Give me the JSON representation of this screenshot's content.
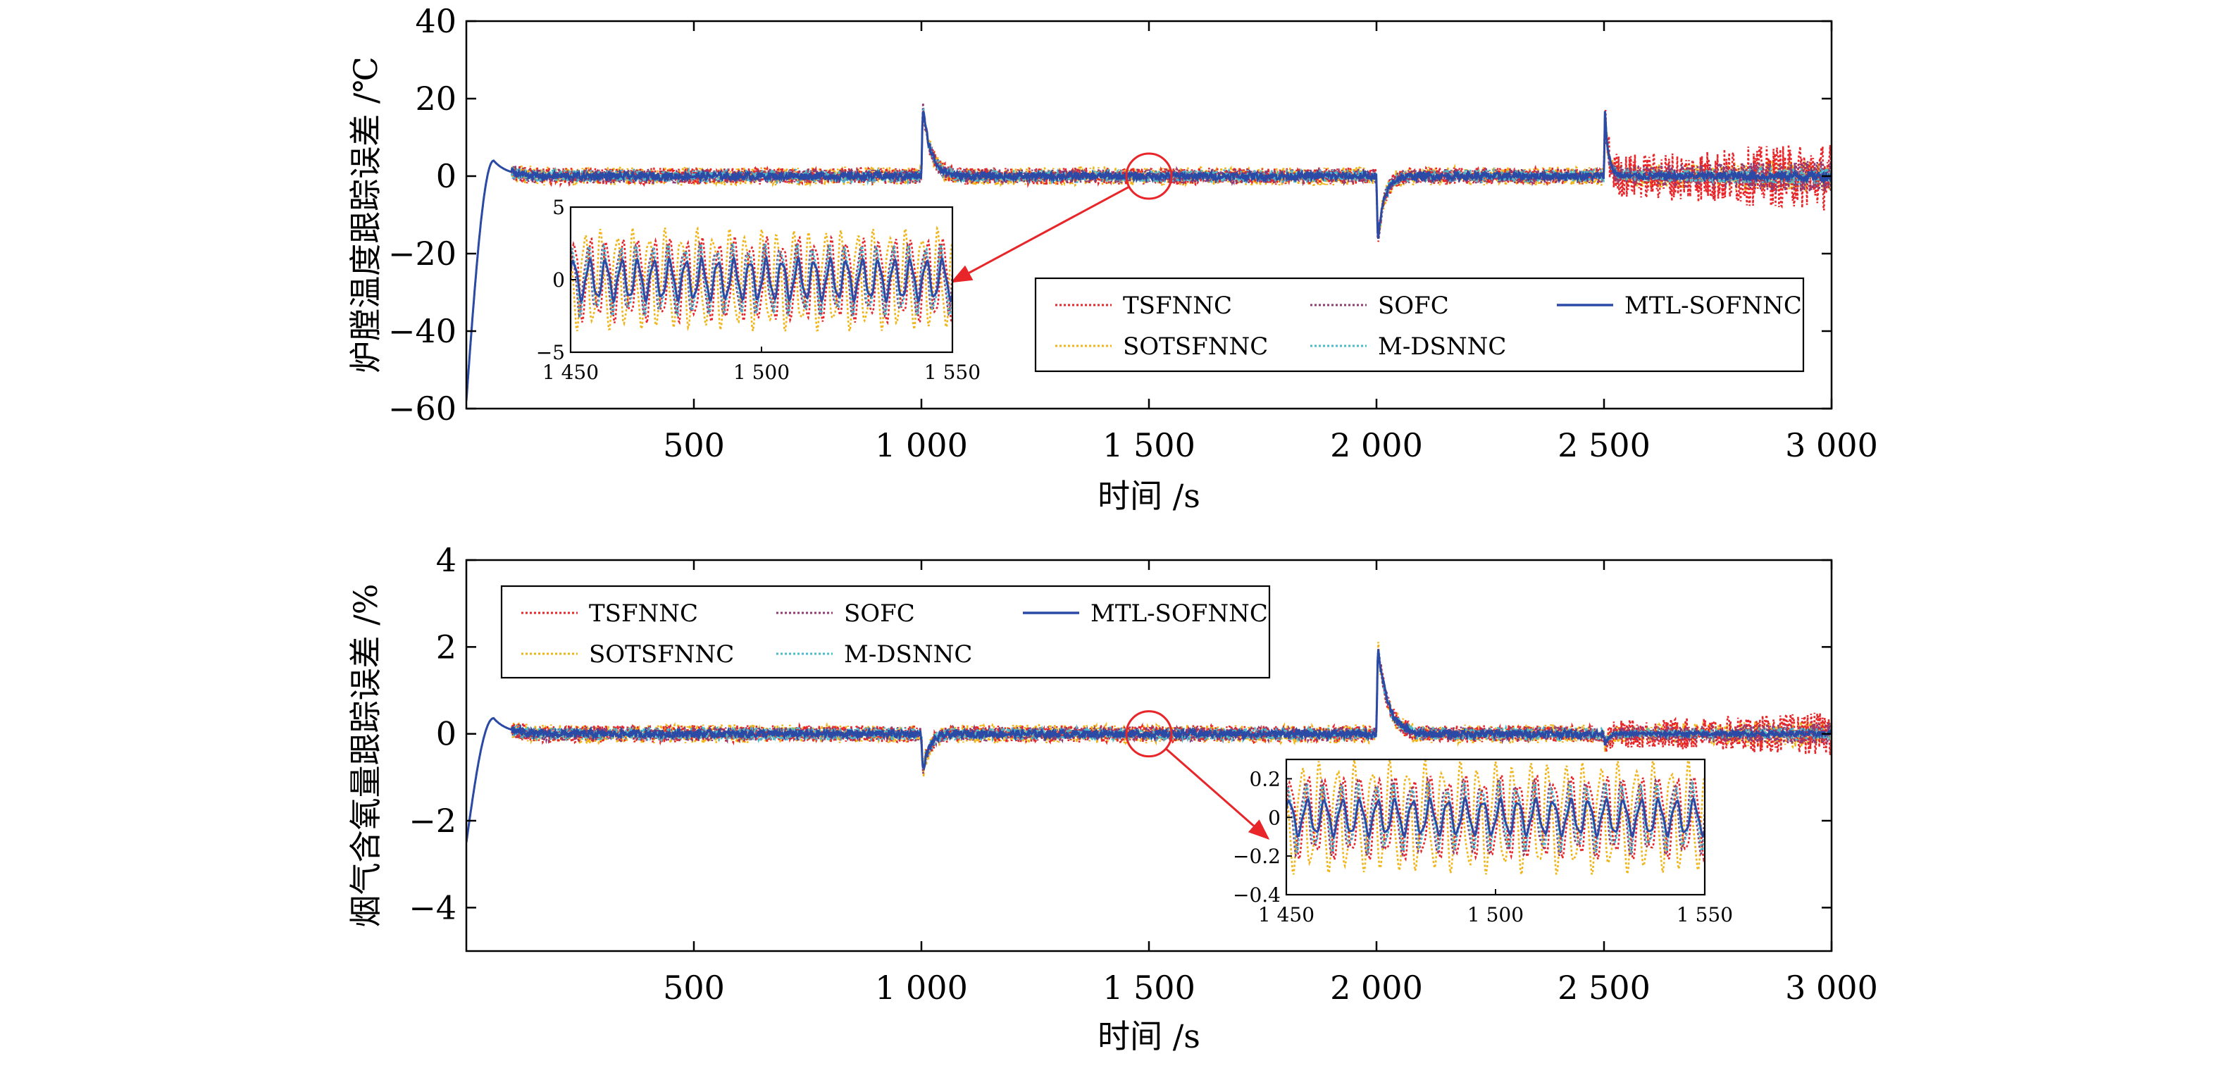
{
  "chart_data": [
    {
      "type": "line",
      "ylabel": "炉膛温度跟踪误差 /℃",
      "xlabel": "时间 /s",
      "xlim": [
        0,
        3000
      ],
      "ylim": [
        -60,
        40
      ],
      "x_ticks": [
        500,
        1000,
        1500,
        2000,
        2500,
        3000
      ],
      "x_tick_labels": [
        "500",
        "1 000",
        "1 500",
        "2 000",
        "2 500",
        "3 000"
      ],
      "y_ticks": [
        -60,
        -40,
        -20,
        0,
        20,
        40
      ],
      "y_tick_labels": [
        "−60",
        "−40",
        "−20",
        "0",
        "20",
        "40"
      ],
      "legend_position": "lower-right",
      "series": [
        {
          "name": "TSFNNC",
          "color": "#e8262a",
          "style": "dotted",
          "noise_end": 9
        },
        {
          "name": "SOFC",
          "color": "#8e3a73",
          "style": "dotted",
          "noise_end": 5
        },
        {
          "name": "MTL-SOFNNC",
          "color": "#2a4aa6",
          "style": "solid",
          "noise_end": 3
        },
        {
          "name": "SOTSFNNC",
          "color": "#f0b416",
          "style": "dotted",
          "noise_end": 4
        },
        {
          "name": "M-DSNNC",
          "color": "#49b9cc",
          "style": "dotted",
          "noise_end": 3
        }
      ],
      "events": [
        {
          "x": 0,
          "value": -58
        },
        {
          "x": 1000,
          "value": 21
        },
        {
          "x": 2000,
          "value": -21
        },
        {
          "x": 2500,
          "value": 21
        }
      ],
      "highlight": {
        "x": 1500,
        "y": 0
      },
      "inset": {
        "xlim": [
          1450,
          1550
        ],
        "ylim": [
          -5,
          5
        ],
        "x_ticks": [
          1450,
          1500,
          1550
        ],
        "x_tick_labels": [
          "1 450",
          "1 500",
          "1 550"
        ],
        "y_ticks": [
          -5,
          0,
          5
        ],
        "y_tick_labels": [
          "−5",
          "0",
          "5"
        ],
        "amplitudes": [
          3,
          2.5,
          1.5,
          3.6,
          2.5
        ]
      }
    },
    {
      "type": "line",
      "ylabel": "烟气含氧量跟踪误差 /%",
      "xlabel": "时间 /s",
      "xlim": [
        0,
        3000
      ],
      "ylim": [
        -5,
        4
      ],
      "x_ticks": [
        500,
        1000,
        1500,
        2000,
        2500,
        3000
      ],
      "x_tick_labels": [
        "500",
        "1 000",
        "1 500",
        "2 000",
        "2 500",
        "3 000"
      ],
      "y_ticks": [
        -4,
        -2,
        0,
        2,
        4
      ],
      "y_tick_labels": [
        "−4",
        "−2",
        "0",
        "2",
        "4"
      ],
      "legend_position": "top-left",
      "series": [
        {
          "name": "TSFNNC",
          "color": "#e8262a",
          "style": "dotted",
          "noise_end": 0.5
        },
        {
          "name": "SOFC",
          "color": "#8e3a73",
          "style": "dotted",
          "noise_end": 0.3
        },
        {
          "name": "MTL-SOFNNC",
          "color": "#2a4aa6",
          "style": "solid",
          "noise_end": 0.15
        },
        {
          "name": "SOTSFNNC",
          "color": "#f0b416",
          "style": "dotted",
          "noise_end": 0.3
        },
        {
          "name": "M-DSNNC",
          "color": "#49b9cc",
          "style": "dotted",
          "noise_end": 0.2
        }
      ],
      "events": [
        {
          "x": 0,
          "value": -2.5
        },
        {
          "x": 1000,
          "value": -1.1
        },
        {
          "x": 2000,
          "value": 2.3
        },
        {
          "x": 2500,
          "value": -0.3
        }
      ],
      "highlight": {
        "x": 1500,
        "y": 0
      },
      "inset": {
        "xlim": [
          1450,
          1550
        ],
        "ylim": [
          -0.4,
          0.3
        ],
        "x_ticks": [
          1450,
          1500,
          1550
        ],
        "x_tick_labels": [
          "1 450",
          "1 500",
          "1 550"
        ],
        "y_ticks": [
          -0.4,
          -0.2,
          0,
          0.2
        ],
        "y_tick_labels": [
          "−0.4",
          "−0.2",
          "0",
          "0.2"
        ],
        "amplitudes": [
          0.22,
          0.2,
          0.1,
          0.3,
          0.18
        ]
      }
    }
  ]
}
